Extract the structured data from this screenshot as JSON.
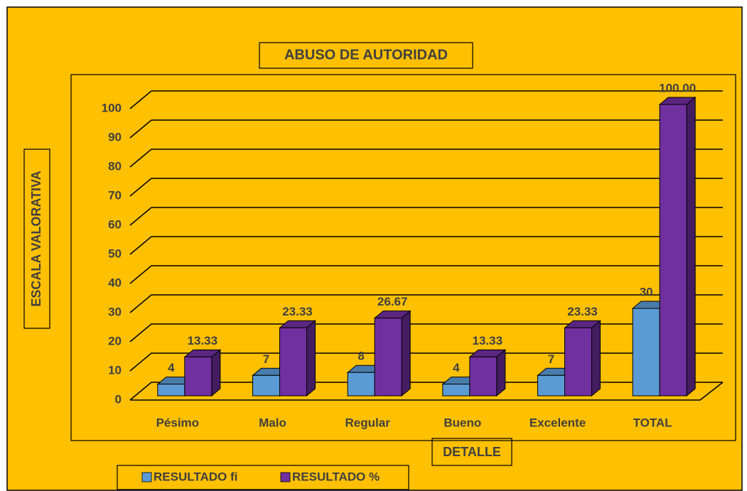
{
  "chart_data": {
    "type": "bar3d",
    "title": "ABUSO DE AUTORIDAD",
    "x_label": "DETALLE",
    "y_label": "ESCALA VALORATIVA",
    "categories": [
      "Pésimo",
      "Malo",
      "Regular",
      "Bueno",
      "Excelente",
      "TOTAL"
    ],
    "series": [
      {
        "name": "RESULTADO fi",
        "color": "#5b9bd5",
        "values": [
          4,
          7,
          8,
          4,
          7,
          30
        ]
      },
      {
        "name": "RESULTADO %",
        "color": "#7030a0",
        "values": [
          13.33,
          23.33,
          26.67,
          13.33,
          23.33,
          100
        ],
        "value_labels": [
          "13.33",
          "23.33",
          "26.67",
          "13.33",
          "23.33",
          "100.00"
        ]
      }
    ],
    "ylim": [
      0,
      100
    ],
    "yticks": [
      0,
      10,
      20,
      30,
      40,
      50,
      60,
      70,
      80,
      90,
      100
    ],
    "grid": true,
    "legend": "bottom"
  }
}
